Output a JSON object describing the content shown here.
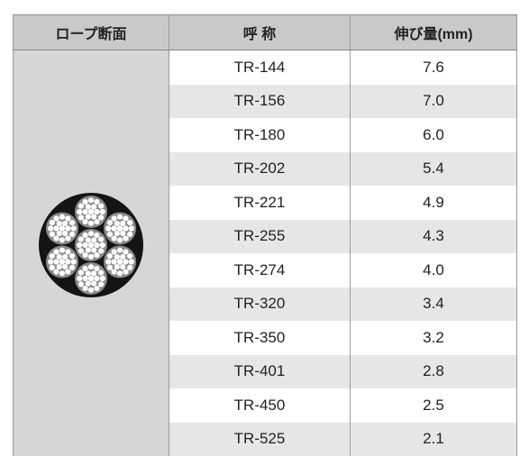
{
  "table": {
    "header": [
      "ロープ断面",
      "呼 称",
      "伸び量(mm)"
    ],
    "rows": [
      [
        "TR-144",
        "7.6"
      ],
      [
        "TR-156",
        "7.0"
      ],
      [
        "TR-180",
        "6.0"
      ],
      [
        "TR-202",
        "5.4"
      ],
      [
        "TR-221",
        "4.9"
      ],
      [
        "TR-255",
        "4.3"
      ],
      [
        "TR-274",
        "4.0"
      ],
      [
        "TR-320",
        "3.4"
      ],
      [
        "TR-350",
        "3.2"
      ],
      [
        "TR-401",
        "2.8"
      ],
      [
        "TR-450",
        "2.5"
      ],
      [
        "TR-525",
        "2.1"
      ]
    ]
  }
}
